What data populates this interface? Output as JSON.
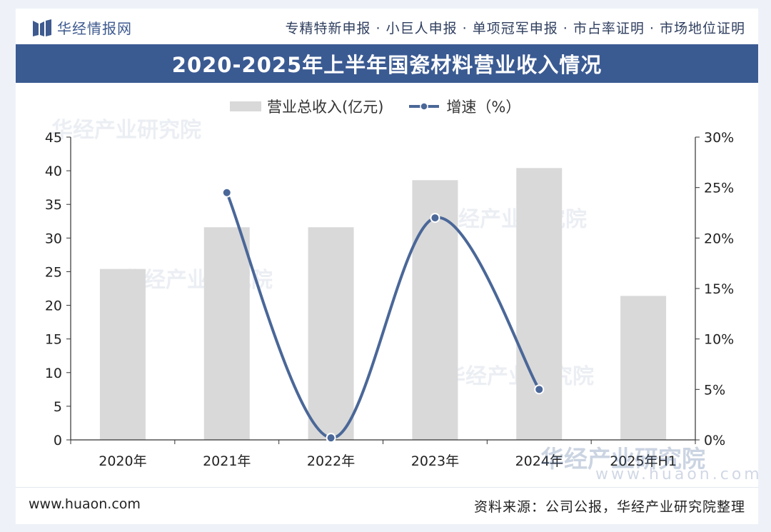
{
  "header": {
    "brand": "华经情报网",
    "tagline": "专精特新申报 · 小巨人申报 · 单项冠军申报 · 市占率证明 · 市场地位证明",
    "title": "2020-2025年上半年国瓷材料营业收入情况"
  },
  "chart_data": {
    "type": "bar",
    "title": "2020-2025年上半年国瓷材料营业收入情况",
    "categories": [
      "2020年",
      "2021年",
      "2022年",
      "2023年",
      "2024年",
      "2025年H1"
    ],
    "series": [
      {
        "name": "营业总收入(亿元)",
        "type": "bar",
        "axis": "left",
        "color": "#d9d9d9",
        "values": [
          25.4,
          31.6,
          31.6,
          38.6,
          40.4,
          21.4
        ]
      },
      {
        "name": "增速（%）",
        "type": "line",
        "axis": "right",
        "color": "#4a6798",
        "values": [
          null,
          24.5,
          0.2,
          22.0,
          5.0,
          null
        ]
      }
    ],
    "y_left": {
      "min": 0,
      "max": 45,
      "ticks": [
        "0",
        "5",
        "10",
        "15",
        "20",
        "25",
        "30",
        "35",
        "40",
        "45"
      ]
    },
    "y_right": {
      "min": 0,
      "max": 30,
      "ticks": [
        "0%",
        "5%",
        "10%",
        "15%",
        "20%",
        "25%",
        "30%"
      ]
    },
    "legend": "top-center",
    "grid": false
  },
  "watermark": {
    "main": "华经产业研究院",
    "url": "www.huaon.com",
    "faint": "华经产业研究院"
  },
  "footer": {
    "site": "www.huaon.com",
    "source": "资料来源：公司公报，华经产业研究院整理"
  }
}
